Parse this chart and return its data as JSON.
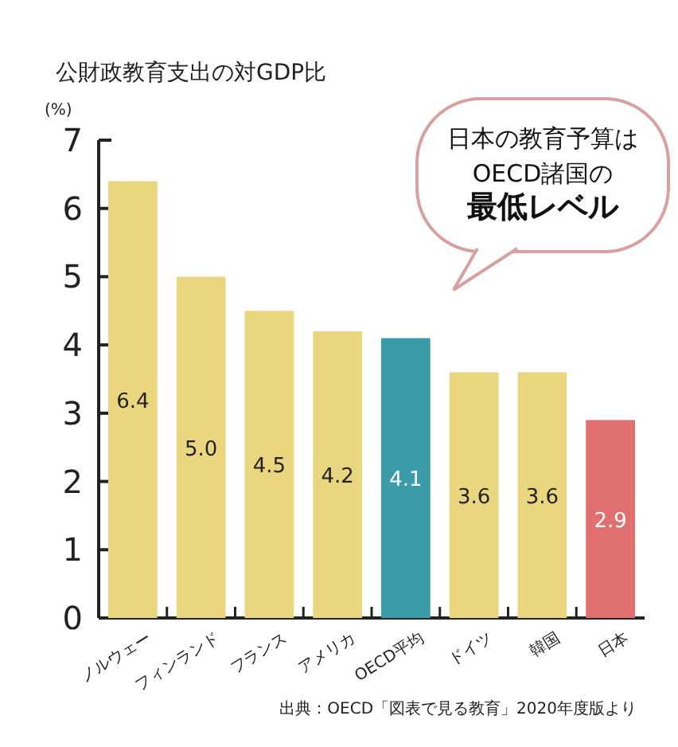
{
  "chart_data": {
    "type": "bar",
    "title": "公財政教育支出の対GDP比",
    "ylabel": "(%)",
    "categories": [
      "ノルウェー",
      "フィンランド",
      "フランス",
      "アメリカ",
      "OECD平均",
      "ドイツ",
      "韓国",
      "日本"
    ],
    "values": [
      6.4,
      5.0,
      4.5,
      4.2,
      4.1,
      3.6,
      3.6,
      2.9
    ],
    "value_labels": [
      "6.4",
      "5.0",
      "4.5",
      "4.2",
      "4.1",
      "3.6",
      "3.6",
      "2.9"
    ],
    "colors": [
      "#e9d67f",
      "#e9d67f",
      "#e9d67f",
      "#e9d67f",
      "#3c9ba8",
      "#e9d67f",
      "#e9d67f",
      "#e0706f"
    ],
    "ylim": [
      0,
      7
    ],
    "yticks": [
      0,
      1,
      2,
      3,
      4,
      5,
      6,
      7
    ],
    "annotations": [
      "日本の教育予算は",
      "OECD諸国の",
      "最低レベル",
      "出典：OECD「図表で見る教育」2020年度版より"
    ]
  }
}
